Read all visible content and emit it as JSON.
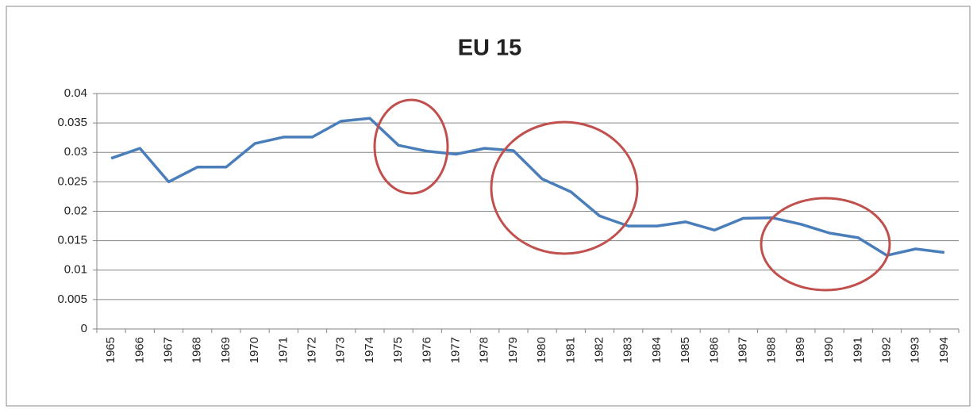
{
  "chart_data": {
    "type": "line",
    "title": "EU 15",
    "categories": [
      "1965",
      "1966",
      "1967",
      "1968",
      "1969",
      "1970",
      "1971",
      "1972",
      "1973",
      "1974",
      "1975",
      "1976",
      "1977",
      "1978",
      "1979",
      "1980",
      "1981",
      "1982",
      "1983",
      "1984",
      "1985",
      "1986",
      "1987",
      "1988",
      "1989",
      "1990",
      "1991",
      "1992",
      "1993",
      "1994"
    ],
    "series": [
      {
        "name": "EU 15",
        "color": "#4a7ebb",
        "values": [
          0.029,
          0.0307,
          0.025,
          0.0275,
          0.0275,
          0.0315,
          0.0326,
          0.0326,
          0.0353,
          0.0358,
          0.0312,
          0.0302,
          0.0297,
          0.0307,
          0.0303,
          0.0255,
          0.0233,
          0.0192,
          0.0175,
          0.0175,
          0.0182,
          0.0168,
          0.0188,
          0.0189,
          0.0178,
          0.0163,
          0.0155,
          0.0125,
          0.0136,
          0.013
        ]
      }
    ],
    "ylim": [
      0,
      0.04
    ],
    "yticks": [
      0,
      0.005,
      0.01,
      0.015,
      0.02,
      0.025,
      0.03,
      0.035,
      0.04
    ],
    "grid": true
  }
}
